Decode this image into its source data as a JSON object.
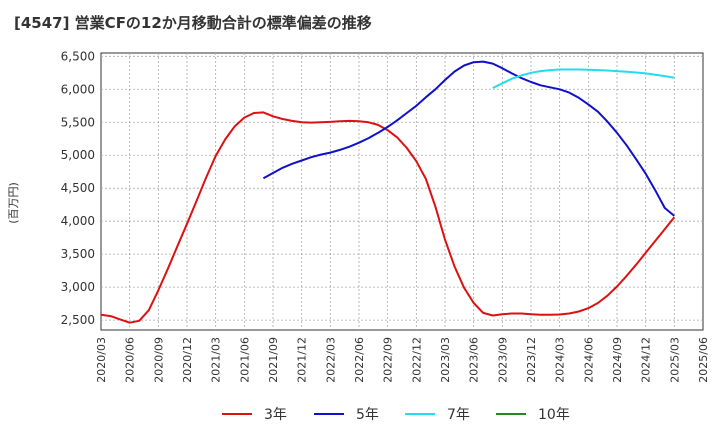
{
  "chart_data": {
    "type": "line",
    "title": "[4547]  営業CFの12か月移動合計の標準偏差の推移",
    "ylabel": "(百万円)",
    "xlabel": "",
    "ylim": [
      2350,
      6550
    ],
    "yticks": [
      2500,
      3000,
      3500,
      4000,
      4500,
      5000,
      5500,
      6000,
      6500
    ],
    "ytick_labels": [
      "2,500",
      "3,000",
      "3,500",
      "4,000",
      "4,500",
      "5,000",
      "5,500",
      "6,000",
      "6,500"
    ],
    "xticks": [
      "2020/03",
      "2020/06",
      "2020/09",
      "2020/12",
      "2021/03",
      "2021/06",
      "2021/09",
      "2021/12",
      "2022/03",
      "2022/06",
      "2022/09",
      "2022/12",
      "2023/03",
      "2023/06",
      "2023/09",
      "2023/12",
      "2024/03",
      "2024/06",
      "2024/09",
      "2024/12",
      "2025/03",
      "2025/06"
    ],
    "grid": true,
    "legend_position": "bottom",
    "series": [
      {
        "name": "3年",
        "color": "#dd1111",
        "points": [
          [
            "2020/03",
            2580
          ],
          [
            "2020/04",
            2560
          ],
          [
            "2020/05",
            2510
          ],
          [
            "2020/06",
            2460
          ],
          [
            "2020/07",
            2490
          ],
          [
            "2020/08",
            2650
          ],
          [
            "2020/09",
            2950
          ],
          [
            "2020/10",
            3280
          ],
          [
            "2020/11",
            3620
          ],
          [
            "2020/12",
            3960
          ],
          [
            "2021/01",
            4310
          ],
          [
            "2021/02",
            4660
          ],
          [
            "2021/03",
            4990
          ],
          [
            "2021/04",
            5240
          ],
          [
            "2021/05",
            5440
          ],
          [
            "2021/06",
            5570
          ],
          [
            "2021/07",
            5640
          ],
          [
            "2021/08",
            5650
          ],
          [
            "2021/09",
            5590
          ],
          [
            "2021/10",
            5550
          ],
          [
            "2021/11",
            5520
          ],
          [
            "2021/12",
            5500
          ],
          [
            "2022/01",
            5495
          ],
          [
            "2022/02",
            5500
          ],
          [
            "2022/03",
            5505
          ],
          [
            "2022/04",
            5515
          ],
          [
            "2022/05",
            5520
          ],
          [
            "2022/06",
            5515
          ],
          [
            "2022/07",
            5500
          ],
          [
            "2022/08",
            5460
          ],
          [
            "2022/09",
            5380
          ],
          [
            "2022/10",
            5270
          ],
          [
            "2022/11",
            5110
          ],
          [
            "2022/12",
            4910
          ],
          [
            "2023/01",
            4640
          ],
          [
            "2023/02",
            4220
          ],
          [
            "2023/03",
            3720
          ],
          [
            "2023/04",
            3310
          ],
          [
            "2023/05",
            2990
          ],
          [
            "2023/06",
            2760
          ],
          [
            "2023/07",
            2610
          ],
          [
            "2023/08",
            2570
          ],
          [
            "2023/09",
            2590
          ],
          [
            "2023/10",
            2600
          ],
          [
            "2023/11",
            2600
          ],
          [
            "2023/12",
            2590
          ],
          [
            "2024/01",
            2580
          ],
          [
            "2024/02",
            2580
          ],
          [
            "2024/03",
            2585
          ],
          [
            "2024/04",
            2600
          ],
          [
            "2024/05",
            2630
          ],
          [
            "2024/06",
            2680
          ],
          [
            "2024/07",
            2760
          ],
          [
            "2024/08",
            2870
          ],
          [
            "2024/09",
            3010
          ],
          [
            "2024/10",
            3170
          ],
          [
            "2024/11",
            3340
          ],
          [
            "2024/12",
            3520
          ],
          [
            "2025/01",
            3700
          ],
          [
            "2025/02",
            3880
          ],
          [
            "2025/03",
            4060
          ]
        ]
      },
      {
        "name": "5年",
        "color": "#1111cc",
        "points": [
          [
            "2021/08",
            4650
          ],
          [
            "2021/09",
            4730
          ],
          [
            "2021/10",
            4810
          ],
          [
            "2021/11",
            4870
          ],
          [
            "2021/12",
            4920
          ],
          [
            "2022/01",
            4970
          ],
          [
            "2022/02",
            5010
          ],
          [
            "2022/03",
            5040
          ],
          [
            "2022/04",
            5080
          ],
          [
            "2022/05",
            5130
          ],
          [
            "2022/06",
            5190
          ],
          [
            "2022/07",
            5260
          ],
          [
            "2022/08",
            5340
          ],
          [
            "2022/09",
            5430
          ],
          [
            "2022/10",
            5530
          ],
          [
            "2022/11",
            5640
          ],
          [
            "2022/12",
            5750
          ],
          [
            "2023/01",
            5880
          ],
          [
            "2023/02",
            6000
          ],
          [
            "2023/03",
            6140
          ],
          [
            "2023/04",
            6270
          ],
          [
            "2023/05",
            6360
          ],
          [
            "2023/06",
            6410
          ],
          [
            "2023/07",
            6420
          ],
          [
            "2023/08",
            6390
          ],
          [
            "2023/09",
            6320
          ],
          [
            "2023/10",
            6240
          ],
          [
            "2023/11",
            6170
          ],
          [
            "2023/12",
            6110
          ],
          [
            "2024/01",
            6060
          ],
          [
            "2024/02",
            6030
          ],
          [
            "2024/03",
            6000
          ],
          [
            "2024/04",
            5950
          ],
          [
            "2024/05",
            5870
          ],
          [
            "2024/06",
            5770
          ],
          [
            "2024/07",
            5660
          ],
          [
            "2024/08",
            5510
          ],
          [
            "2024/09",
            5340
          ],
          [
            "2024/10",
            5150
          ],
          [
            "2024/11",
            4940
          ],
          [
            "2024/12",
            4720
          ],
          [
            "2025/01",
            4470
          ],
          [
            "2025/02",
            4200
          ],
          [
            "2025/03",
            4080
          ]
        ]
      },
      {
        "name": "7年",
        "color": "#22ddee",
        "points": [
          [
            "2023/08",
            6020
          ],
          [
            "2023/09",
            6090
          ],
          [
            "2023/10",
            6160
          ],
          [
            "2023/11",
            6210
          ],
          [
            "2023/12",
            6250
          ],
          [
            "2024/01",
            6275
          ],
          [
            "2024/02",
            6290
          ],
          [
            "2024/03",
            6300
          ],
          [
            "2024/04",
            6300
          ],
          [
            "2024/05",
            6300
          ],
          [
            "2024/06",
            6295
          ],
          [
            "2024/07",
            6290
          ],
          [
            "2024/08",
            6285
          ],
          [
            "2024/09",
            6275
          ],
          [
            "2024/10",
            6265
          ],
          [
            "2024/11",
            6255
          ],
          [
            "2024/12",
            6240
          ],
          [
            "2025/01",
            6220
          ],
          [
            "2025/02",
            6200
          ],
          [
            "2025/03",
            6175
          ]
        ]
      },
      {
        "name": "10年",
        "color": "#228822",
        "points": []
      }
    ]
  }
}
